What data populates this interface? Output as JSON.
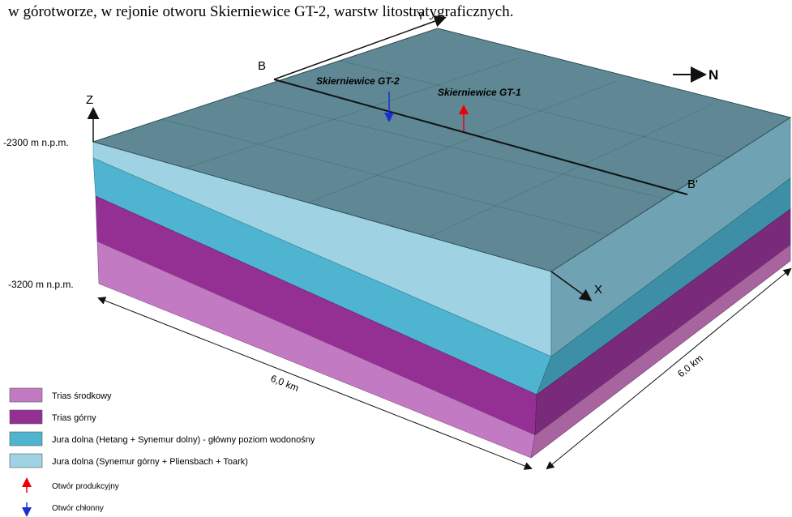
{
  "caption": "w górotworze, w rejonie otworu Skierniewice GT-2, warstw litostratygraficznych.",
  "axes": {
    "x": "X",
    "y": "Y",
    "z": "Z"
  },
  "section": {
    "start": "B",
    "end": "B'"
  },
  "wells": {
    "injection": "Skierniewice GT-2",
    "production": "Skierniewice GT-1"
  },
  "north": "N",
  "depth": {
    "top": "-2300 m n.p.m.",
    "bottom": "-3200 m n.p.m."
  },
  "dimensions": {
    "front": "6,0 km",
    "side": "6,0 km"
  },
  "legend": [
    {
      "label": "Trias środkowy"
    },
    {
      "label": "Trias górny"
    },
    {
      "label": "Jura dolna (Hetang + Synemur dolny) - główny poziom wodonośny"
    },
    {
      "label": "Jura dolna (Synemur górny + Pliensbach + Toark)"
    },
    {
      "label": "Otwór produkcyjny"
    },
    {
      "label": "Otwór chłonny"
    }
  ]
}
